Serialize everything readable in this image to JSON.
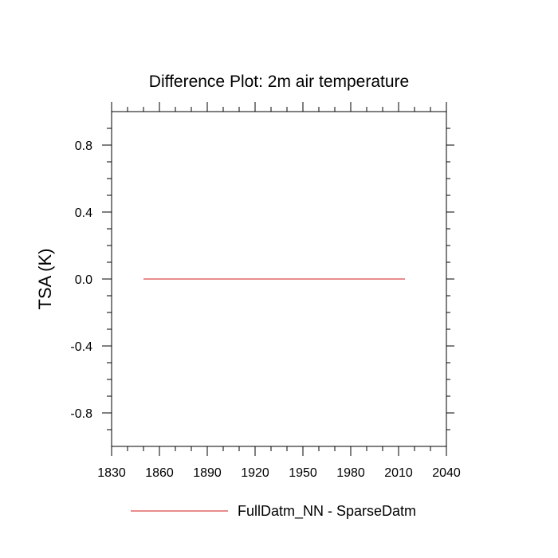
{
  "chart_data": {
    "type": "line",
    "title": "Difference Plot: 2m air temperature",
    "xlabel": "",
    "ylabel": "TSA  (K)",
    "xlim": [
      1830,
      2040
    ],
    "ylim": [
      -1,
      1
    ],
    "x_ticks": [
      1830,
      1860,
      1890,
      1920,
      1950,
      1980,
      2010,
      2040
    ],
    "y_ticks": [
      -0.8,
      -0.4,
      0.0,
      0.4,
      0.8
    ],
    "y_tick_labels": [
      "-0.8",
      "-0.4",
      "0.0",
      "0.4",
      "0.8"
    ],
    "grid": false,
    "legend_position": "bottom",
    "series": [
      {
        "name": "FullDatm_NN - SparseDatm",
        "color": "#e06666",
        "x": [
          1850,
          2014
        ],
        "y": [
          0.0,
          0.0
        ]
      }
    ]
  }
}
